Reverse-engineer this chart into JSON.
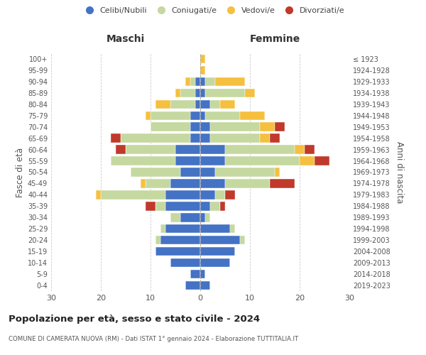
{
  "age_groups": [
    "0-4",
    "5-9",
    "10-14",
    "15-19",
    "20-24",
    "25-29",
    "30-34",
    "35-39",
    "40-44",
    "45-49",
    "50-54",
    "55-59",
    "60-64",
    "65-69",
    "70-74",
    "75-79",
    "80-84",
    "85-89",
    "90-94",
    "95-99",
    "100+"
  ],
  "birth_years": [
    "2019-2023",
    "2014-2018",
    "2009-2013",
    "2004-2008",
    "1999-2003",
    "1994-1998",
    "1989-1993",
    "1984-1988",
    "1979-1983",
    "1974-1978",
    "1969-1973",
    "1964-1968",
    "1959-1963",
    "1954-1958",
    "1949-1953",
    "1944-1948",
    "1939-1943",
    "1934-1938",
    "1929-1933",
    "1924-1928",
    "≤ 1923"
  ],
  "maschi_celibi": [
    3,
    2,
    6,
    9,
    8,
    7,
    4,
    7,
    7,
    6,
    4,
    5,
    5,
    2,
    2,
    2,
    1,
    1,
    1,
    0,
    0
  ],
  "maschi_coniugati": [
    0,
    0,
    0,
    0,
    1,
    1,
    2,
    2,
    13,
    5,
    10,
    13,
    10,
    14,
    8,
    8,
    5,
    3,
    1,
    0,
    0
  ],
  "maschi_vedovi": [
    0,
    0,
    0,
    0,
    0,
    0,
    0,
    0,
    1,
    1,
    0,
    0,
    0,
    0,
    0,
    1,
    3,
    1,
    1,
    0,
    0
  ],
  "maschi_divorziati": [
    0,
    0,
    0,
    0,
    0,
    0,
    0,
    2,
    0,
    0,
    0,
    0,
    2,
    2,
    0,
    0,
    0,
    0,
    0,
    0,
    0
  ],
  "femmine_celibi": [
    2,
    1,
    6,
    7,
    8,
    6,
    1,
    2,
    3,
    5,
    3,
    5,
    5,
    2,
    2,
    1,
    2,
    1,
    1,
    0,
    0
  ],
  "femmine_coniugati": [
    0,
    0,
    0,
    0,
    1,
    1,
    1,
    2,
    2,
    9,
    12,
    15,
    14,
    10,
    10,
    7,
    2,
    8,
    2,
    0,
    0
  ],
  "femmine_vedovi": [
    0,
    0,
    0,
    0,
    0,
    0,
    0,
    0,
    0,
    0,
    1,
    3,
    2,
    2,
    3,
    5,
    3,
    2,
    6,
    1,
    1
  ],
  "femmine_divorziati": [
    0,
    0,
    0,
    0,
    0,
    0,
    0,
    1,
    2,
    5,
    0,
    3,
    2,
    2,
    2,
    0,
    0,
    0,
    0,
    0,
    0
  ],
  "colors": {
    "celibi": "#4472c4",
    "coniugati": "#c5d8a0",
    "vedovi": "#f5c040",
    "divorziati": "#c0392b"
  },
  "title": "Popolazione per età, sesso e stato civile - 2024",
  "subtitle": "COMUNE DI CAMERATA NUOVA (RM) - Dati ISTAT 1° gennaio 2024 - Elaborazione TUTTITALIA.IT",
  "xlabel_left": "Maschi",
  "xlabel_right": "Femmine",
  "ylabel_left": "Fasce di età",
  "ylabel_right": "Anni di nascita",
  "xlim": 30,
  "legend_labels": [
    "Celibi/Nubili",
    "Coniugati/e",
    "Vedovi/e",
    "Divorziati/e"
  ],
  "background_color": "#ffffff",
  "grid_color": "#cccccc"
}
